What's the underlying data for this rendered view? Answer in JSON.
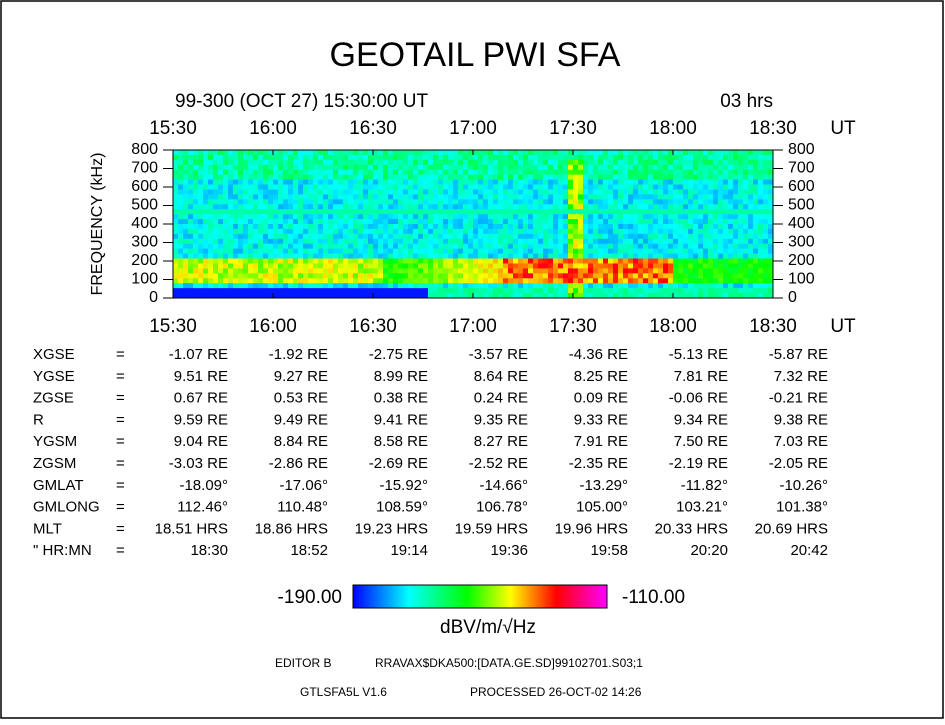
{
  "title": "GEOTAIL  PWI  SFA",
  "header": {
    "date": "99-300 (OCT 27) 15:30:00  UT",
    "span": "03 hrs"
  },
  "time_ticks": [
    "15:30",
    "16:00",
    "16:30",
    "17:00",
    "17:30",
    "18:00",
    "18:30"
  ],
  "time_unit": "UT",
  "freq_label": "FREQUENCY (kHz)",
  "freq_ticks": [
    "800",
    "700",
    "600",
    "500",
    "400",
    "300",
    "200",
    "100",
    "0"
  ],
  "table": {
    "rows": [
      {
        "label": "XGSE",
        "eq": "=",
        "cells": [
          "-1.07 RE",
          "-1.92 RE",
          "-2.75 RE",
          "-3.57 RE",
          "-4.36 RE",
          "-5.13 RE",
          "-5.87 RE"
        ]
      },
      {
        "label": "YGSE",
        "eq": "=",
        "cells": [
          "9.51 RE",
          "9.27 RE",
          "8.99 RE",
          "8.64 RE",
          "8.25 RE",
          "7.81 RE",
          "7.32 RE"
        ]
      },
      {
        "label": "ZGSE",
        "eq": "=",
        "cells": [
          "0.67 RE",
          "0.53 RE",
          "0.38 RE",
          "0.24 RE",
          "0.09 RE",
          "-0.06 RE",
          "-0.21 RE"
        ]
      },
      {
        "label": "R",
        "eq": "=",
        "cells": [
          "9.59 RE",
          "9.49 RE",
          "9.41 RE",
          "9.35 RE",
          "9.33 RE",
          "9.34 RE",
          "9.38 RE"
        ]
      },
      {
        "label": "YGSM",
        "eq": "=",
        "cells": [
          "9.04 RE",
          "8.84 RE",
          "8.58 RE",
          "8.27 RE",
          "7.91 RE",
          "7.50 RE",
          "7.03 RE"
        ]
      },
      {
        "label": "ZGSM",
        "eq": "=",
        "cells": [
          "-3.03 RE",
          "-2.86 RE",
          "-2.69 RE",
          "-2.52 RE",
          "-2.35 RE",
          "-2.19 RE",
          "-2.05 RE"
        ]
      },
      {
        "label": "GMLAT",
        "eq": "=",
        "cells": [
          "-18.09°",
          "-17.06°",
          "-15.92°",
          "-14.66°",
          "-13.29°",
          "-11.82°",
          "-10.26°"
        ]
      },
      {
        "label": "GMLONG",
        "eq": "=",
        "cells": [
          "112.46°",
          "110.48°",
          "108.59°",
          "106.78°",
          "105.00°",
          "103.21°",
          "101.38°"
        ]
      },
      {
        "label": "MLT",
        "eq": "=",
        "cells": [
          "18.51 HRS",
          "18.86 HRS",
          "19.23 HRS",
          "19.59 HRS",
          "19.96 HRS",
          "20.33 HRS",
          "20.69 HRS"
        ]
      },
      {
        "label": "\" HR:MN",
        "eq": "=",
        "cells": [
          "18:30",
          "18:52",
          "19:14",
          "19:36",
          "19:58",
          "20:20",
          "20:42"
        ]
      }
    ]
  },
  "colorbar": {
    "min": "-190.00",
    "max": "-110.00",
    "unit": "dBV/m/√Hz"
  },
  "footer": {
    "editor": "EDITOR B",
    "file": "RRAVAX$DKA500:[DATA.GE.SD]99102701.S03;1",
    "version": "GTLSFA5L V1.6",
    "processed": "PROCESSED 26-OCT-02  14:26"
  }
}
